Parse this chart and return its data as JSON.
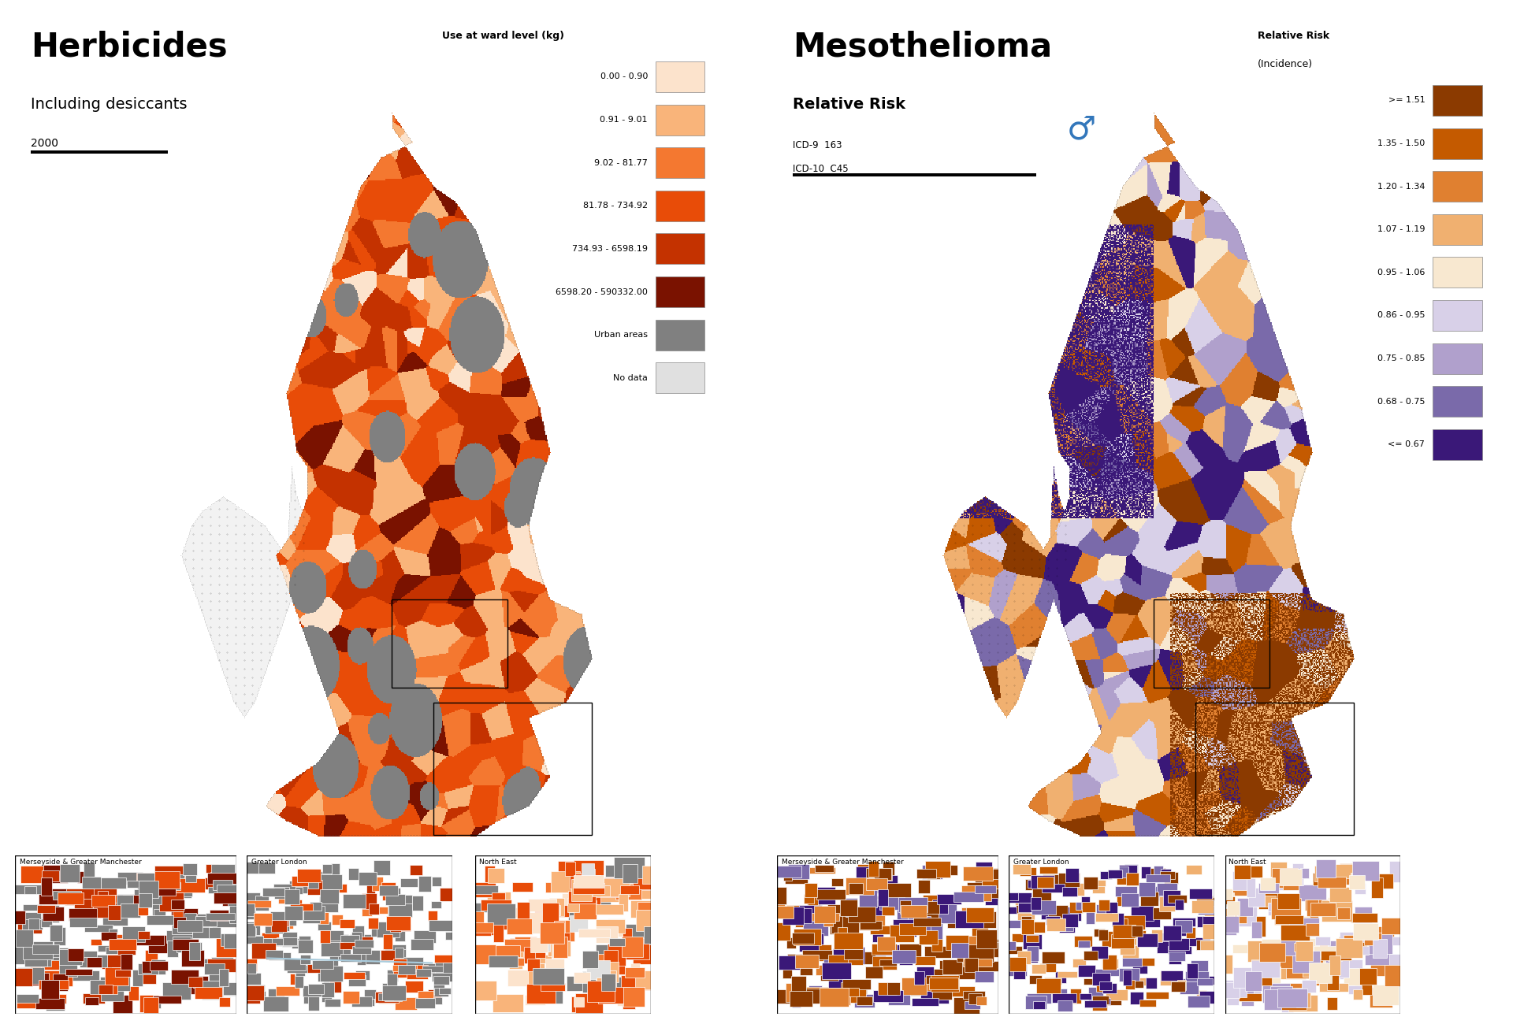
{
  "left_title": "Herbicides",
  "left_subtitle": "Including desiccants",
  "left_year": "2000",
  "left_legend_title": "Use at ward level (kg)",
  "left_legend_labels": [
    "0.00 - 0.90",
    "0.91 - 9.01",
    "9.02 - 81.77",
    "81.78 - 734.92",
    "734.93 - 6598.19",
    "6598.20 - 590332.00",
    "Urban areas",
    "No data"
  ],
  "left_legend_colors": [
    "#fce3cc",
    "#f9b47a",
    "#f47830",
    "#e84c08",
    "#c43200",
    "#7a1200",
    "#808080",
    "#e0e0e0"
  ],
  "right_title": "Mesothelioma",
  "right_subtitle": "Relative Risk",
  "right_codes": "ICD-9  163\nICD-10  C45",
  "right_legend_title": "Relative Risk\n(Incidence)",
  "right_legend_labels": [
    ">= 1.51",
    "1.35 - 1.50",
    "1.20 - 1.34",
    "1.07 - 1.19",
    "0.95 - 1.06",
    "0.86 - 0.95",
    "0.75 - 0.85",
    "0.68 - 0.75",
    "<= 0.67"
  ],
  "right_legend_colors": [
    "#8b3a00",
    "#c45a00",
    "#e08030",
    "#f0b070",
    "#f8e8d0",
    "#d8d0e8",
    "#b0a0cc",
    "#7a6aaa",
    "#3a1878"
  ],
  "background_color": "#ffffff",
  "fig_width": 19.34,
  "fig_height": 13.0
}
